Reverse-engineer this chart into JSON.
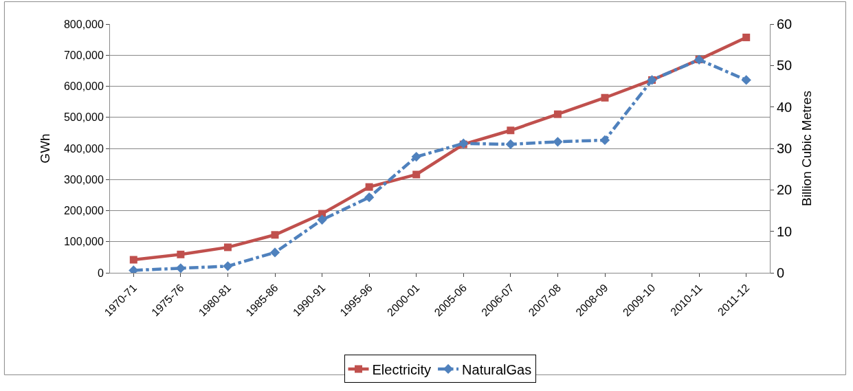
{
  "chart_data": {
    "type": "line",
    "ylabel": "GWh",
    "y2label": "Billion Cubic Metres",
    "categories": [
      "1970-71",
      "1975-76",
      "1980-81",
      "1985-86",
      "1990-91",
      "1995-96",
      "2000-01",
      "2005-06",
      "2006-07",
      "2007-08",
      "2008-09",
      "2009-10",
      "2010-11",
      "2011-12"
    ],
    "series": [
      {
        "name": "Electricity",
        "color": "#c0504d",
        "marker": "square",
        "line_style": "solid",
        "values": [
          42000,
          59000,
          82000,
          122000,
          190000,
          276000,
          316000,
          413000,
          458000,
          510000,
          563000,
          620000,
          686000,
          757000
        ]
      },
      {
        "name": "NaturalGas",
        "color": "#4f81bd",
        "marker": "diamond",
        "line_style": "dashdot",
        "axis": "y2",
        "values": [
          0.6,
          1.1,
          1.6,
          4.9,
          12.8,
          18.2,
          28.0,
          31.2,
          31.0,
          31.6,
          32.0,
          46.5,
          51.4,
          46.5
        ]
      }
    ],
    "ylim": [
      0,
      800000
    ],
    "yticks": [
      {
        "value": 0,
        "label": "0"
      },
      {
        "value": 100000,
        "label": "100,000"
      },
      {
        "value": 200000,
        "label": "200,000"
      },
      {
        "value": 300000,
        "label": "300,000"
      },
      {
        "value": 400000,
        "label": "400,000"
      },
      {
        "value": 500000,
        "label": "500,000"
      },
      {
        "value": 600000,
        "label": "600,000"
      },
      {
        "value": 700000,
        "label": "700,000"
      },
      {
        "value": 800000,
        "label": "800,000"
      }
    ],
    "y2lim": [
      0,
      60
    ],
    "y2ticks": [
      0,
      10,
      20,
      30,
      40,
      50,
      60
    ],
    "grid": "y",
    "legend": "bottom"
  }
}
